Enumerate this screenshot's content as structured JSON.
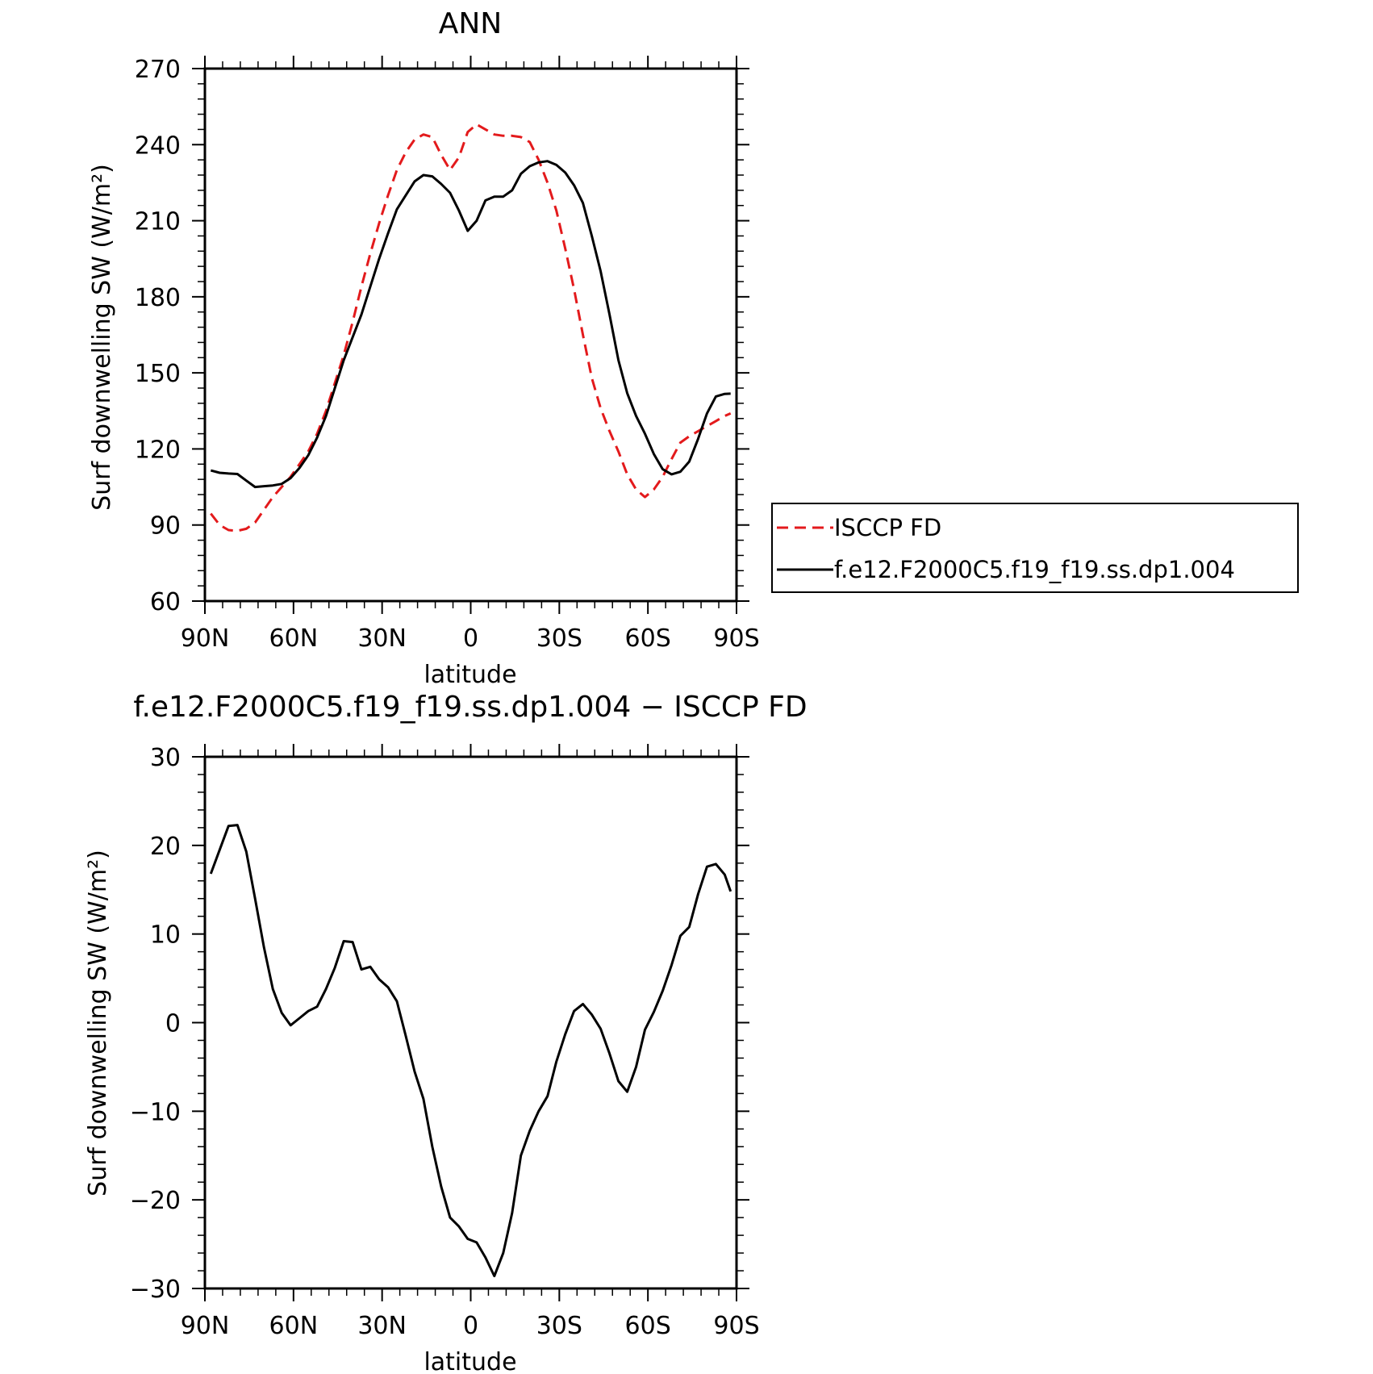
{
  "chart_data": [
    {
      "type": "line",
      "title": "ANN",
      "xlabel": "latitude",
      "ylabel": "Surf downwelling SW (W/m²)",
      "xlim": [
        90,
        -90
      ],
      "ylim": [
        60,
        270
      ],
      "xticks": [
        90,
        60,
        30,
        0,
        -30,
        -60,
        -90
      ],
      "xtick_labels": [
        "90N",
        "60N",
        "30N",
        "0",
        "30S",
        "60S",
        "90S"
      ],
      "yticks": [
        60,
        90,
        120,
        150,
        180,
        210,
        240,
        270
      ],
      "ytick_labels": [
        "60",
        "90",
        "120",
        "150",
        "180",
        "210",
        "240",
        "270"
      ],
      "grid": false,
      "legend": "right",
      "series": [
        {
          "name": "ISCCP FD",
          "color": "#e31a1c",
          "dash": "dashed",
          "x": [
            88,
            85,
            82,
            79,
            76,
            73,
            70,
            67,
            64,
            61,
            58,
            55,
            52,
            49,
            46,
            43,
            40,
            37,
            34,
            31,
            28,
            25,
            22,
            19,
            16,
            13,
            10,
            7,
            4,
            1,
            -2,
            -5,
            -8,
            -11,
            -14,
            -17,
            -20,
            -23,
            -26,
            -29,
            -32,
            -35,
            -38,
            -41,
            -44,
            -47,
            -50,
            -53,
            -56,
            -59,
            -62,
            -65,
            -68,
            -71,
            -74,
            -77,
            -80,
            -83,
            -86,
            -88
          ],
          "y": [
            94.5,
            90,
            88,
            87.7,
            88.5,
            91,
            96,
            101,
            105,
            109,
            114,
            119,
            126,
            135,
            146,
            157,
            170,
            184,
            197,
            209,
            220,
            230,
            237,
            242,
            244,
            243,
            236,
            230,
            235,
            245,
            248,
            246,
            244,
            243.5,
            243.5,
            243,
            241,
            234,
            225,
            214,
            199,
            183,
            165,
            148,
            136,
            127,
            119,
            110,
            104,
            101,
            104,
            109,
            116,
            122.5,
            125,
            127,
            129,
            131,
            133,
            134
          ]
        },
        {
          "name": "f.e12.F2000C5.f19_f19.ss.dp1.004",
          "color": "#000000",
          "dash": "solid",
          "x": [
            88,
            85,
            82,
            79,
            76,
            73,
            70,
            67,
            64,
            61,
            58,
            55,
            52,
            49,
            46,
            43,
            40,
            37,
            34,
            31,
            28,
            25,
            22,
            19,
            16,
            13,
            10,
            7,
            4,
            1,
            -2,
            -5,
            -8,
            -11,
            -14,
            -17,
            -20,
            -23,
            -26,
            -29,
            -32,
            -35,
            -38,
            -41,
            -44,
            -47,
            -50,
            -53,
            -56,
            -59,
            -62,
            -65,
            -68,
            -71,
            -74,
            -77,
            -80,
            -83,
            -86,
            -88
          ],
          "y": [
            111.5,
            110.6,
            110.3,
            110.1,
            107.5,
            105,
            105.3,
            105.6,
            106.2,
            108.5,
            112.5,
            117.5,
            124.5,
            133,
            144,
            155,
            164,
            173,
            184,
            195,
            205,
            214.5,
            220,
            225.5,
            228,
            227.5,
            224.5,
            221,
            214,
            206,
            210,
            218,
            219.5,
            219.5,
            222,
            228.5,
            231.5,
            233,
            233.5,
            232,
            229,
            224,
            217,
            204,
            190,
            173,
            155,
            142,
            133,
            126,
            118,
            112,
            110,
            111,
            115,
            124,
            134,
            140.7,
            141.7,
            141.8
          ]
        }
      ]
    },
    {
      "type": "line",
      "title": "f.e12.F2000C5.f19_f19.ss.dp1.004 − ISCCP FD",
      "xlabel": "latitude",
      "ylabel": "Surf downwelling SW (W/m²)",
      "xlim": [
        90,
        -90
      ],
      "ylim": [
        -30,
        30
      ],
      "xticks": [
        90,
        60,
        30,
        0,
        -30,
        -60,
        -90
      ],
      "xtick_labels": [
        "90N",
        "60N",
        "30N",
        "0",
        "30S",
        "60S",
        "90S"
      ],
      "yticks": [
        -30,
        -20,
        -10,
        0,
        10,
        20,
        30
      ],
      "ytick_labels": [
        "−30",
        "−20",
        "−10",
        "0",
        "10",
        "20",
        "30"
      ],
      "grid": false,
      "series": [
        {
          "color": "#000000",
          "dash": "solid",
          "x": [
            88,
            85,
            82,
            79,
            76,
            73,
            70,
            67,
            64,
            61,
            58,
            55,
            52,
            49,
            46,
            43,
            40,
            37,
            34,
            31,
            28,
            25,
            22,
            19,
            16,
            13,
            10,
            7,
            4,
            1,
            -2,
            -5,
            -8,
            -11,
            -14,
            -17,
            -20,
            -23,
            -26,
            -29,
            -32,
            -35,
            -38,
            -41,
            -44,
            -47,
            -50,
            -53,
            -56,
            -59,
            -62,
            -65,
            -68,
            -71,
            -74,
            -77,
            -80,
            -83,
            -86,
            -88
          ],
          "y": [
            16.8,
            19.5,
            22.2,
            22.3,
            19.3,
            14,
            8.5,
            3.8,
            1.1,
            -0.3,
            0.5,
            1.3,
            1.8,
            3.8,
            6.2,
            9.2,
            9.1,
            6,
            6.3,
            4.9,
            4,
            2.4,
            -1.5,
            -5.5,
            -8.6,
            -14,
            -18.5,
            -22,
            -23,
            -24.4,
            -24.8,
            -26.5,
            -28.6,
            -26,
            -21.5,
            -15,
            -12.2,
            -10,
            -8.3,
            -4.4,
            -1.3,
            1.3,
            2.1,
            0.9,
            -0.7,
            -3.5,
            -6.6,
            -7.8,
            -5,
            -0.8,
            1.2,
            3.6,
            6.5,
            9.8,
            10.8,
            14.5,
            17.6,
            17.9,
            16.7,
            14.8
          ]
        }
      ]
    }
  ]
}
